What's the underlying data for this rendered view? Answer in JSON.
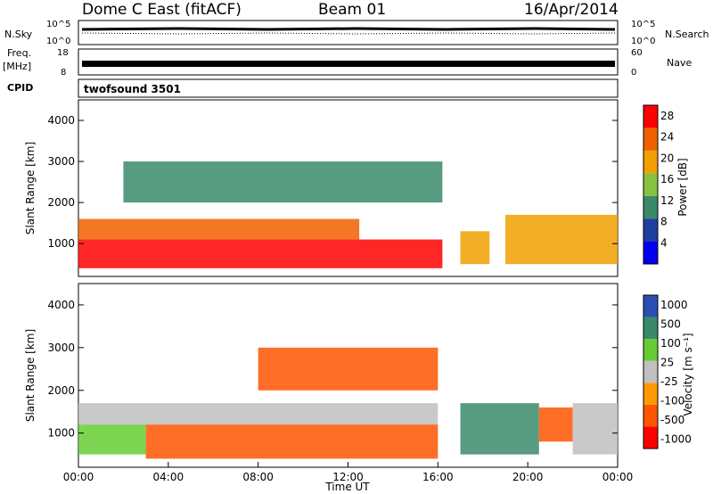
{
  "header": {
    "station": "Dome C East (fitACF)",
    "beam": "Beam 01",
    "date": "16/Apr/2014"
  },
  "status_panels": {
    "nsky_label": "N.Sky",
    "nsearch_label": "N.Search",
    "nsky_ticks": [
      "10^5",
      "10^0"
    ],
    "freq_label": "Freq.",
    "freq_unit": "[MHz]",
    "freq_ticks": [
      "18",
      "8"
    ],
    "nave_label": "Nave",
    "nave_ticks": [
      "60",
      "0"
    ],
    "cpid_label": "CPID",
    "cpid_value": "twofsound 3501"
  },
  "colors": {
    "power_scale": [
      "#0000ee",
      "#1f3f9f",
      "#3a8a6a",
      "#88c040",
      "#f0a000",
      "#f06000",
      "#ff0000"
    ],
    "velocity_scale": [
      "#ff0000",
      "#ff5500",
      "#ff9900",
      "#c0c0c0",
      "#66cc33",
      "#3a8a6a",
      "#2a4fb0"
    ]
  },
  "chart_data": [
    {
      "type": "heatmap",
      "title": "",
      "quantity": "Power",
      "xlabel": "Time UT",
      "ylabel": "Slant Range [km]",
      "xlim": [
        "00:00",
        "00:00"
      ],
      "xticks": [
        "00:00",
        "04:00",
        "08:00",
        "12:00",
        "16:00",
        "20:00",
        "00:00"
      ],
      "ylim": [
        200,
        4500
      ],
      "yticks": [
        1000,
        2000,
        3000,
        4000
      ],
      "colorbar_label": "Power [dB]",
      "colorbar_ticks": [
        "4",
        "8",
        "12",
        "16",
        "20",
        "24",
        "28"
      ],
      "regions": [
        {
          "t0": 0.0,
          "t1": 16.2,
          "r0": 400,
          "r1": 1100,
          "value": 28
        },
        {
          "t0": 0.0,
          "t1": 12.5,
          "r0": 1100,
          "r1": 1600,
          "value": 24
        },
        {
          "t0": 2.0,
          "t1": 16.2,
          "r0": 2000,
          "r1": 3000,
          "value": 12
        },
        {
          "t0": 17.0,
          "t1": 18.3,
          "r0": 500,
          "r1": 1300,
          "value": 22
        },
        {
          "t0": 19.0,
          "t1": 24.0,
          "r0": 500,
          "r1": 1700,
          "value": 20
        }
      ]
    },
    {
      "type": "heatmap",
      "title": "",
      "quantity": "Velocity",
      "xlabel": "Time UT",
      "ylabel": "Slant Range [km]",
      "xlim": [
        "00:00",
        "00:00"
      ],
      "xticks": [
        "00:00",
        "04:00",
        "08:00",
        "12:00",
        "16:00",
        "20:00",
        "00:00"
      ],
      "ylim": [
        200,
        4500
      ],
      "yticks": [
        1000,
        2000,
        3000,
        4000
      ],
      "colorbar_label": "Velocity [m s⁻¹]",
      "colorbar_ticks": [
        "1000",
        "500",
        "100",
        "25",
        "-25",
        "-100",
        "-500",
        "-1000"
      ],
      "regions": [
        {
          "t0": 0.0,
          "t1": 3.0,
          "r0": 500,
          "r1": 1200,
          "value": 80
        },
        {
          "t0": 3.0,
          "t1": 16.0,
          "r0": 400,
          "r1": 1200,
          "value": -150
        },
        {
          "t0": 0.0,
          "t1": 16.0,
          "r0": 1200,
          "r1": 1700,
          "value": 0
        },
        {
          "t0": 8.0,
          "t1": 16.0,
          "r0": 2000,
          "r1": 3000,
          "value": -100
        },
        {
          "t0": 17.0,
          "t1": 20.5,
          "r0": 500,
          "r1": 1700,
          "value": 300
        },
        {
          "t0": 20.5,
          "t1": 22.0,
          "r0": 800,
          "r1": 1600,
          "value": -200
        },
        {
          "t0": 22.0,
          "t1": 24.0,
          "r0": 500,
          "r1": 1700,
          "value": 0
        }
      ]
    }
  ]
}
